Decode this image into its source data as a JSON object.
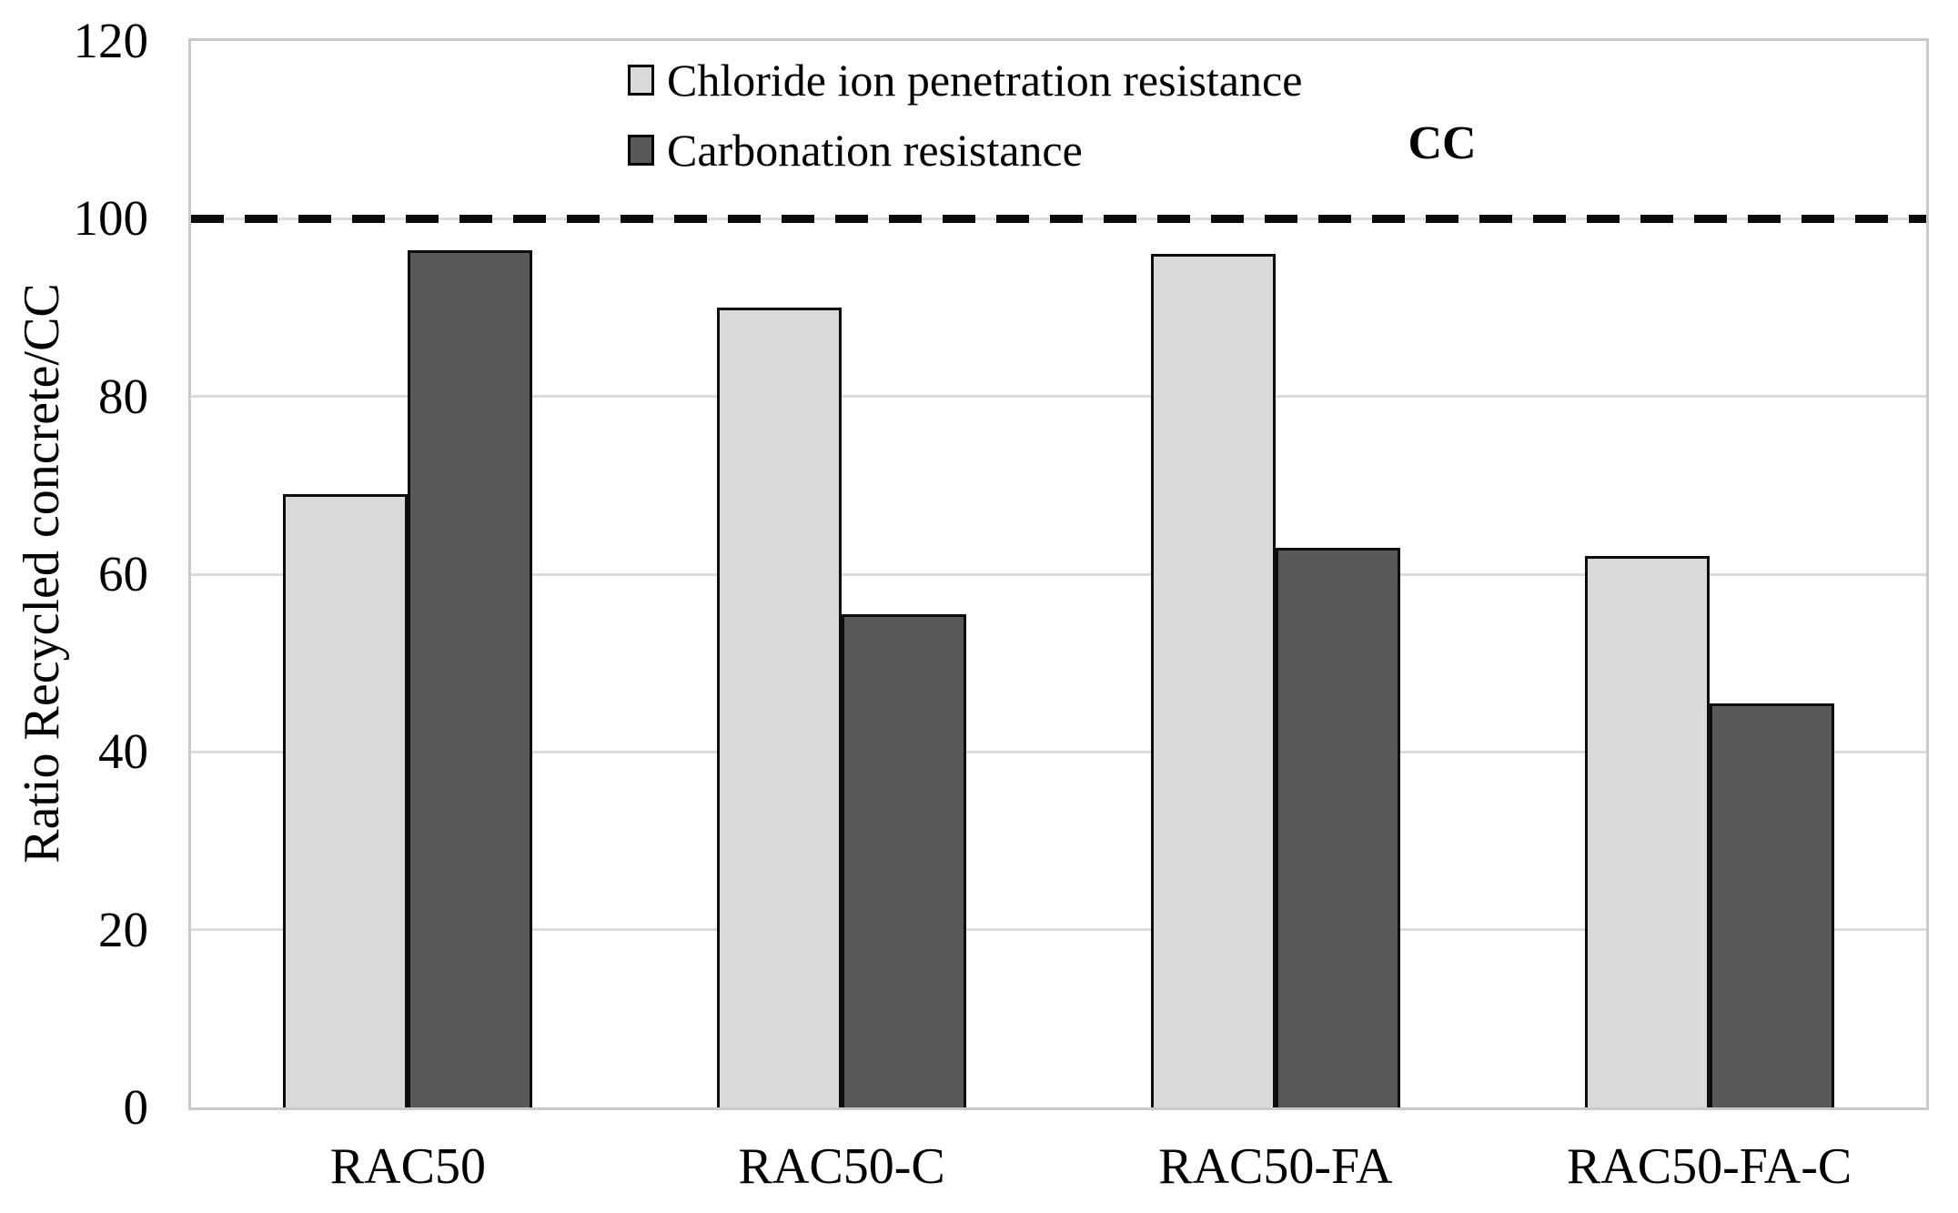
{
  "chart_data": {
    "type": "bar",
    "title": "",
    "xlabel": "",
    "ylabel": "Ratio Recycled concrete/CC",
    "ylim": [
      0,
      120
    ],
    "yticks": [
      0,
      20,
      40,
      60,
      80,
      100,
      120
    ],
    "grid": "horizontal",
    "legend_position": "top-center-inside",
    "categories": [
      "RAC50",
      "RAC50-C",
      "RAC50-FA",
      "RAC50-FA-C"
    ],
    "series": [
      {
        "name": "Chloride ion penetration resistance",
        "color": "#d9d9d9",
        "values": [
          69,
          90,
          96,
          62
        ]
      },
      {
        "name": "Carbonation resistance",
        "color": "#595959",
        "values": [
          96.5,
          55.5,
          63,
          45.5
        ]
      }
    ],
    "reference_line": {
      "value": 100,
      "label": "CC",
      "style": "dashed",
      "color": "#000000"
    }
  },
  "colors": {
    "bar_outline": "#0d0d0d",
    "gridline": "#dcdcdc",
    "plot_border": "#c9c9c9",
    "background": "#ffffff",
    "text": "#000000"
  }
}
